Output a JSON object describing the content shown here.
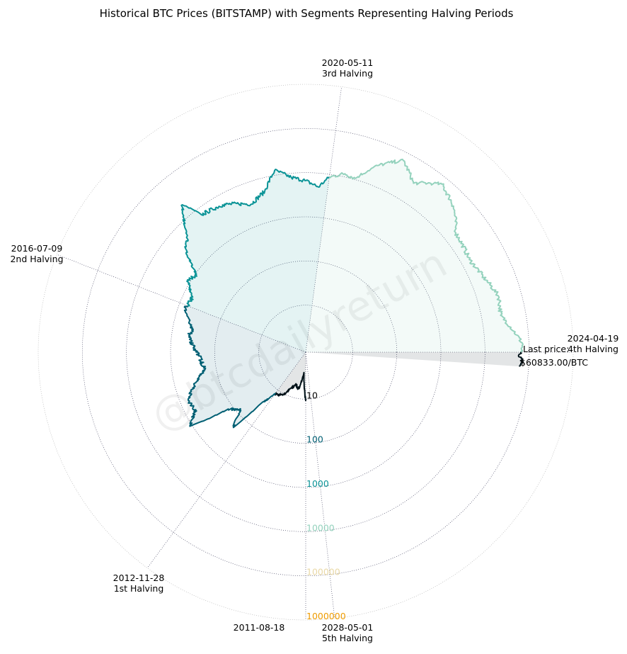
{
  "chart_data": {
    "type": "polar-line",
    "title": "Historical BTC Prices (BITSTAMP) with Segments Representing Halving Periods",
    "watermark": "@btcdailyreturn",
    "radial_scale": "log",
    "radial_ticks": [
      {
        "label": "10",
        "value": 10,
        "color": "#000000"
      },
      {
        "label": "100",
        "value": 100,
        "color": "#005f73"
      },
      {
        "label": "1000",
        "value": 1000,
        "color": "#0a9396"
      },
      {
        "label": "10000",
        "value": 10000,
        "color": "#94d2bd"
      },
      {
        "label": "100000",
        "value": 100000,
        "color": "#e9d8a6"
      },
      {
        "label": "1000000",
        "value": 1000000,
        "color": "#ee9b00"
      }
    ],
    "dates": [
      {
        "date": "2011-08-18",
        "label": ""
      },
      {
        "date": "2012-11-28",
        "label": "1st Halving"
      },
      {
        "date": "2016-07-09",
        "label": "2nd Halving"
      },
      {
        "date": "2020-05-11",
        "label": "3rd Halving"
      },
      {
        "date": "2024-04-19",
        "label": "4th Halving"
      },
      {
        "date": "2028-05-01",
        "label": "5th Halving"
      }
    ],
    "last_price_label": "Last price:",
    "last_price_value": "$60833.00/BTC",
    "segments": [
      {
        "color": "#001219",
        "points": [
          [
            "2011-08-18",
            11
          ],
          [
            "2011-10-20",
            2.5
          ],
          [
            "2012-01-05",
            6
          ],
          [
            "2012-03-15",
            5
          ],
          [
            "2012-06-01",
            6.5
          ],
          [
            "2012-08-15",
            11
          ],
          [
            "2012-11-28",
            12.3
          ]
        ]
      },
      {
        "color": "#005f73",
        "points": [
          [
            "2012-11-28",
            12.3
          ],
          [
            "2013-02-20",
            30
          ],
          [
            "2013-04-10",
            200
          ],
          [
            "2013-07-05",
            80
          ],
          [
            "2013-10-01",
            130
          ],
          [
            "2013-12-04",
            1130
          ],
          [
            "2014-03-01",
            560
          ],
          [
            "2014-06-01",
            650
          ],
          [
            "2014-10-01",
            330
          ],
          [
            "2015-01-14",
            180
          ],
          [
            "2015-06-01",
            230
          ],
          [
            "2015-11-04",
            400
          ],
          [
            "2016-02-01",
            370
          ],
          [
            "2016-06-15",
            680
          ],
          [
            "2016-07-09",
            650
          ]
        ]
      },
      {
        "color": "#0a9396",
        "points": [
          [
            "2016-07-09",
            650
          ],
          [
            "2016-10-01",
            610
          ],
          [
            "2017-01-04",
            1130
          ],
          [
            "2017-03-25",
            950
          ],
          [
            "2017-06-12",
            2900
          ],
          [
            "2017-09-01",
            4900
          ],
          [
            "2017-12-17",
            19500
          ],
          [
            "2018-02-06",
            6900
          ],
          [
            "2018-06-28",
            5850
          ],
          [
            "2018-12-15",
            3200
          ],
          [
            "2019-04-02",
            4900
          ],
          [
            "2019-06-26",
            12900
          ],
          [
            "2019-09-26",
            8000
          ],
          [
            "2019-12-17",
            6600
          ],
          [
            "2020-03-12",
            4850
          ],
          [
            "2020-05-11",
            8600
          ]
        ]
      },
      {
        "color": "#94d2bd",
        "points": [
          [
            "2020-05-11",
            8600
          ],
          [
            "2020-08-01",
            11800
          ],
          [
            "2020-10-01",
            10600
          ],
          [
            "2020-12-31",
            29000
          ],
          [
            "2021-04-14",
            64000
          ],
          [
            "2021-07-20",
            29800
          ],
          [
            "2021-11-10",
            68000
          ],
          [
            "2022-03-01",
            44000
          ],
          [
            "2022-06-18",
            19000
          ],
          [
            "2022-11-21",
            15700
          ],
          [
            "2023-03-10",
            20000
          ],
          [
            "2023-07-14",
            31000
          ],
          [
            "2023-10-15",
            27000
          ],
          [
            "2024-03-14",
            73000
          ],
          [
            "2024-04-19",
            63500
          ]
        ]
      },
      {
        "color": "#001219",
        "points": [
          [
            "2024-04-19",
            63500
          ],
          [
            "2024-05-10",
            58000
          ],
          [
            "2024-05-25",
            69000
          ],
          [
            "2024-06-10",
            66000
          ],
          [
            "2024-06-25",
            60833
          ]
        ]
      }
    ]
  }
}
